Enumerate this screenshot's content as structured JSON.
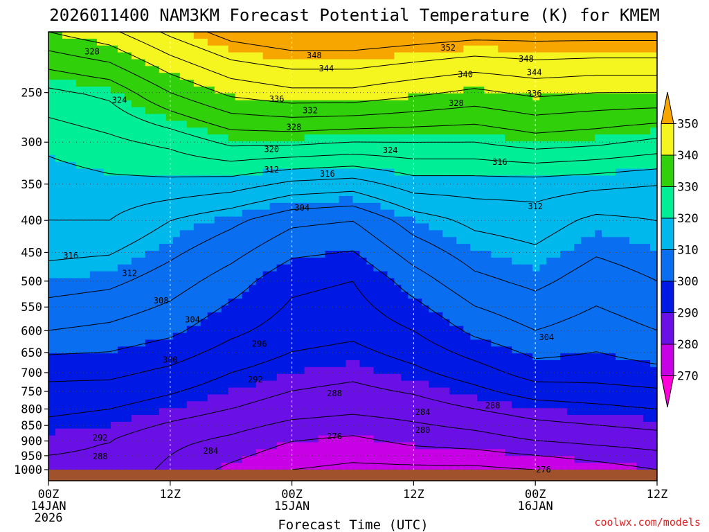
{
  "chart_data": {
    "type": "heatmap",
    "title": "2026011400 NAM3KM Forecast Potential Temperature (K) for KMEM",
    "xlabel": "Forecast Time (UTC)",
    "ylabel": "",
    "x_ticks": [
      {
        "hour": 0,
        "l1": "00Z",
        "l2": "14JAN",
        "l3": "2026"
      },
      {
        "hour": 12,
        "l1": "12Z",
        "l2": "",
        "l3": ""
      },
      {
        "hour": 24,
        "l1": "00Z",
        "l2": "15JAN",
        "l3": ""
      },
      {
        "hour": 36,
        "l1": "12Z",
        "l2": "",
        "l3": ""
      },
      {
        "hour": 48,
        "l1": "00Z",
        "l2": "16JAN",
        "l3": ""
      },
      {
        "hour": 60,
        "l1": "12Z",
        "l2": "",
        "l3": ""
      }
    ],
    "x_range_hours": [
      0,
      60
    ],
    "y_ticks": [
      "250",
      "300",
      "350",
      "400",
      "450",
      "500",
      "550",
      "600",
      "650",
      "700",
      "750",
      "800",
      "850",
      "900",
      "950",
      "1000"
    ],
    "y_range_hpa": [
      200,
      1000
    ],
    "y_scale": "log",
    "colorbar": {
      "labels": [
        "350",
        "340",
        "330",
        "320",
        "310",
        "300",
        "290",
        "280",
        "270"
      ],
      "bands": [
        {
          "min": 350,
          "max": 360,
          "color": "#f7a600"
        },
        {
          "min": 340,
          "max": 350,
          "color": "#f5f520"
        },
        {
          "min": 330,
          "max": 340,
          "color": "#30d00a"
        },
        {
          "min": 320,
          "max": 330,
          "color": "#00ee96"
        },
        {
          "min": 310,
          "max": 320,
          "color": "#00b8ec"
        },
        {
          "min": 300,
          "max": 310,
          "color": "#0a6ef0"
        },
        {
          "min": 290,
          "max": 300,
          "color": "#0018e4"
        },
        {
          "min": 280,
          "max": 290,
          "color": "#6a10e6"
        },
        {
          "min": 270,
          "max": 280,
          "color": "#c800e6"
        },
        {
          "min": 260,
          "max": 270,
          "color": "#ff00d8"
        }
      ]
    },
    "surface_fill_color": "#a0522d",
    "contour_levels": [
      276,
      280,
      284,
      288,
      292,
      296,
      300,
      304,
      308,
      312,
      316,
      320,
      324,
      328,
      332,
      336,
      340,
      344,
      348,
      352
    ],
    "profile_hours": [
      0,
      6,
      12,
      18,
      24,
      30,
      36,
      42,
      48,
      54,
      60
    ],
    "profile_levels_hpa": [
      200,
      250,
      300,
      350,
      400,
      500,
      600,
      700,
      800,
      900,
      1000
    ],
    "theta_profiles": [
      [
        340,
        327,
        321,
        318,
        316,
        310,
        304,
        297,
        293,
        289,
        287
      ],
      [
        343,
        329,
        323,
        319,
        316,
        309,
        303,
        297,
        292,
        288,
        287
      ],
      [
        349,
        336,
        325,
        319,
        312,
        306,
        301,
        295,
        290,
        285,
        283
      ],
      [
        354,
        341,
        329,
        318,
        309,
        302,
        297,
        292,
        288,
        283,
        279
      ],
      [
        356,
        343,
        329,
        315,
        305,
        297,
        294,
        290,
        286,
        280,
        276
      ],
      [
        356,
        343,
        328,
        314,
        304,
        296,
        293,
        289,
        285,
        279,
        275
      ],
      [
        355,
        341,
        328,
        318,
        310,
        302,
        296,
        291,
        286,
        281,
        275
      ],
      [
        354,
        339,
        328,
        318,
        313,
        307,
        301,
        294,
        288,
        282,
        275
      ],
      [
        354,
        341,
        330,
        318,
        314,
        309,
        304,
        298,
        290,
        284,
        276
      ],
      [
        354,
        340,
        329,
        317,
        311,
        306,
        302,
        298,
        291,
        285,
        278
      ],
      [
        354,
        340,
        327,
        316,
        312,
        308,
        304,
        299,
        292,
        286,
        280
      ]
    ],
    "contour_labels": [
      {
        "text": "328",
        "hour": 4.3,
        "p": 215
      },
      {
        "text": "324",
        "hour": 7.0,
        "p": 257
      },
      {
        "text": "348",
        "hour": 26.2,
        "p": 218
      },
      {
        "text": "344",
        "hour": 27.4,
        "p": 229
      },
      {
        "text": "336",
        "hour": 22.5,
        "p": 256
      },
      {
        "text": "332",
        "hour": 25.8,
        "p": 267
      },
      {
        "text": "328",
        "hour": 24.2,
        "p": 284
      },
      {
        "text": "320",
        "hour": 22.0,
        "p": 308
      },
      {
        "text": "312",
        "hour": 22.0,
        "p": 332
      },
      {
        "text": "316",
        "hour": 27.5,
        "p": 337
      },
      {
        "text": "304",
        "hour": 25.0,
        "p": 382
      },
      {
        "text": "324",
        "hour": 33.7,
        "p": 309
      },
      {
        "text": "352",
        "hour": 39.4,
        "p": 212
      },
      {
        "text": "340",
        "hour": 41.1,
        "p": 234
      },
      {
        "text": "328",
        "hour": 40.2,
        "p": 260
      },
      {
        "text": "348",
        "hour": 47.1,
        "p": 221
      },
      {
        "text": "344",
        "hour": 47.9,
        "p": 232
      },
      {
        "text": "336",
        "hour": 47.9,
        "p": 251
      },
      {
        "text": "316",
        "hour": 44.5,
        "p": 323
      },
      {
        "text": "312",
        "hour": 48.0,
        "p": 380
      },
      {
        "text": "316",
        "hour": 2.2,
        "p": 455
      },
      {
        "text": "312",
        "hour": 8.0,
        "p": 486
      },
      {
        "text": "308",
        "hour": 11.1,
        "p": 537
      },
      {
        "text": "304",
        "hour": 14.2,
        "p": 576
      },
      {
        "text": "300",
        "hour": 12.0,
        "p": 668
      },
      {
        "text": "296",
        "hour": 20.8,
        "p": 630
      },
      {
        "text": "292",
        "hour": 20.4,
        "p": 718
      },
      {
        "text": "288",
        "hour": 28.2,
        "p": 756
      },
      {
        "text": "284",
        "hour": 36.9,
        "p": 809
      },
      {
        "text": "288",
        "hour": 43.8,
        "p": 790
      },
      {
        "text": "280",
        "hour": 36.9,
        "p": 865
      },
      {
        "text": "276",
        "hour": 28.2,
        "p": 885
      },
      {
        "text": "304",
        "hour": 49.1,
        "p": 615
      },
      {
        "text": "292",
        "hour": 5.1,
        "p": 890
      },
      {
        "text": "288",
        "hour": 5.1,
        "p": 953
      },
      {
        "text": "284",
        "hour": 16.0,
        "p": 933
      },
      {
        "text": "276",
        "hour": 48.8,
        "p": 1000
      }
    ],
    "credit": "coolwx.com/models"
  }
}
